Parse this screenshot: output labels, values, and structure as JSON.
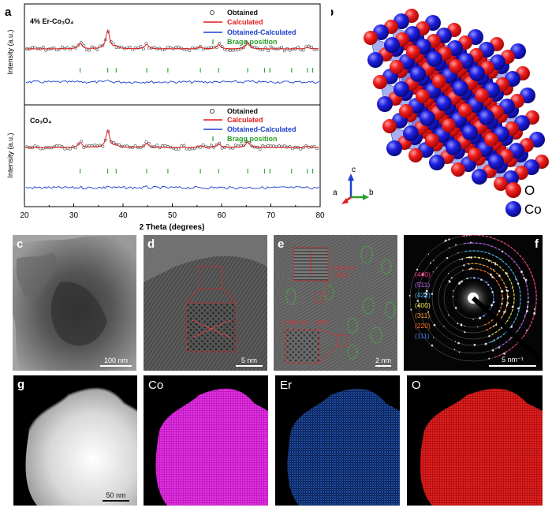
{
  "panel_labels": {
    "a": "a",
    "b": "b",
    "c": "c",
    "d": "d",
    "e": "e",
    "f": "f",
    "g": "g"
  },
  "chart_data": [
    {
      "type": "line",
      "panel": "a-top",
      "sample_label": "4% Er-Co₃O₄",
      "ylabel": "Intensity (a.u.)",
      "xlabel": "2 Theta (degrees)",
      "xlim": [
        20,
        80
      ],
      "x_ticks": [
        "20",
        "30",
        "40",
        "50",
        "60",
        "70",
        "80"
      ],
      "legend": [
        "Obtained",
        "Calculated",
        "Obtained-Calculated",
        "Bragg position"
      ],
      "legend_position": "top-right",
      "bragg_positions": [
        31.3,
        36.9,
        38.6,
        44.8,
        49.1,
        55.7,
        59.4,
        65.3,
        68.7,
        69.8,
        74.2,
        77.4,
        78.5
      ],
      "peaks": [
        {
          "x": 31.3,
          "height": 0.2
        },
        {
          "x": 36.9,
          "height": 0.65
        },
        {
          "x": 38.6,
          "height": 0.08
        },
        {
          "x": 44.8,
          "height": 0.16
        },
        {
          "x": 55.7,
          "height": 0.07
        },
        {
          "x": 59.4,
          "height": 0.15
        },
        {
          "x": 65.3,
          "height": 0.22
        },
        {
          "x": 77.4,
          "height": 0.05
        }
      ]
    },
    {
      "type": "line",
      "panel": "a-bottom",
      "sample_label": "Co₃O₄",
      "ylabel": "Intensity (a.u.)",
      "xlabel": "2 Theta (degrees)",
      "xlim": [
        20,
        80
      ],
      "x_ticks": [
        "20",
        "30",
        "40",
        "50",
        "60",
        "70",
        "80"
      ],
      "legend": [
        "Obtained",
        "Calculated",
        "Obtained-Calculated",
        "Bragg position"
      ],
      "legend_position": "top-right",
      "bragg_positions": [
        31.3,
        36.9,
        38.6,
        44.8,
        49.1,
        55.7,
        59.4,
        65.3,
        68.7,
        69.8,
        74.2,
        77.4,
        78.5
      ],
      "peaks": [
        {
          "x": 31.3,
          "height": 0.18
        },
        {
          "x": 36.9,
          "height": 0.6
        },
        {
          "x": 38.6,
          "height": 0.07
        },
        {
          "x": 44.8,
          "height": 0.14
        },
        {
          "x": 55.7,
          "height": 0.06
        },
        {
          "x": 59.4,
          "height": 0.13
        },
        {
          "x": 65.3,
          "height": 0.2
        },
        {
          "x": 77.4,
          "height": 0.05
        }
      ]
    }
  ],
  "series_colors": {
    "obtained": "#444444",
    "calculated": "#e41a1c",
    "difference": "#1f3fd0",
    "bragg": "#2ca02c"
  },
  "structure": {
    "axes": {
      "c": "c",
      "a": "a",
      "b": "b"
    },
    "legend": [
      {
        "label": "O",
        "color": "#e8141c"
      },
      {
        "label": "Co",
        "color": "#1f1fe0"
      }
    ]
  },
  "micrographs": {
    "c": {
      "scale_bar": "100 nm"
    },
    "d": {
      "scale_bar": "5 nm"
    },
    "e": {
      "scale_bar": "2 nm",
      "annotations": [
        "0.243 nm",
        "(311)",
        "0.283 nm",
        "(220)"
      ]
    },
    "f": {
      "scale_bar": "5 nm⁻¹",
      "rings": [
        {
          "label": "(440)",
          "color": "#ff3b8a"
        },
        {
          "label": "(511)",
          "color": "#c060ff"
        },
        {
          "label": "(422)",
          "color": "#3cb8ff"
        },
        {
          "label": "(400)",
          "color": "#f0e040"
        },
        {
          "label": "(311)",
          "color": "#ff9a30"
        },
        {
          "label": "(220)",
          "color": "#ff7020"
        },
        {
          "label": "(111)",
          "color": "#4080ff"
        }
      ]
    }
  },
  "eds_maps": {
    "g": {
      "scale_bar": "50 nm"
    },
    "maps": [
      {
        "element": "Co",
        "color": "#e21ee2"
      },
      {
        "element": "Er",
        "color": "#2a6fe6"
      },
      {
        "element": "O",
        "color": "#e01a1a"
      }
    ]
  }
}
